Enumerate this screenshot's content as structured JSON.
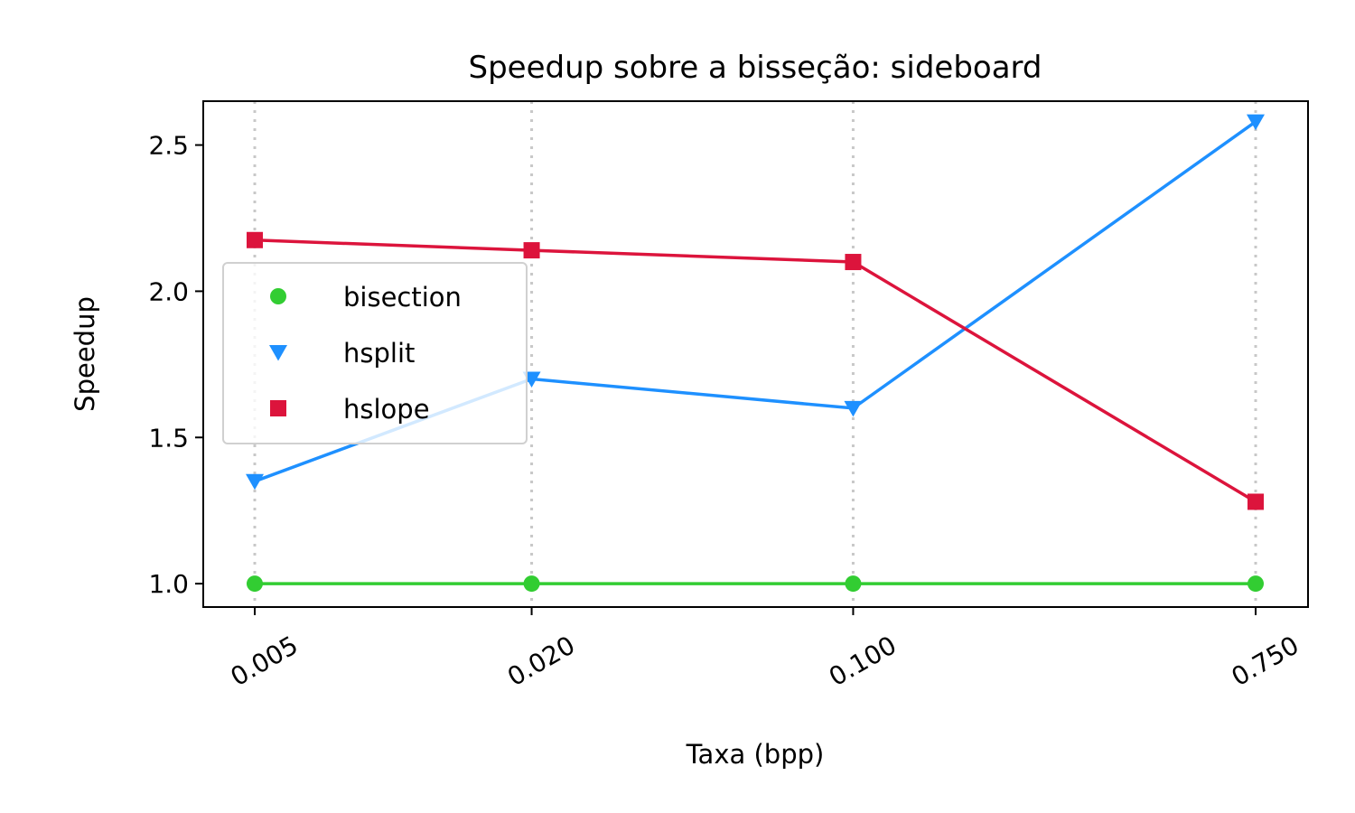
{
  "chart_data": {
    "type": "line",
    "title": "Speedup sobre a bisseção: sideboard",
    "xlabel": "Taxa (bpp)",
    "ylabel": "Speedup",
    "x_scale": "log",
    "x": [
      0.005,
      0.02,
      0.1,
      0.75
    ],
    "x_tick_labels": [
      "0.005",
      "0.020",
      "0.100",
      "0.750"
    ],
    "y_ticks": [
      1.0,
      1.5,
      2.0,
      2.5
    ],
    "y_tick_labels": [
      "1.0",
      "1.5",
      "2.0",
      "2.5"
    ],
    "ylim": [
      0.92,
      2.65
    ],
    "grid": "vertical dotted at x ticks",
    "legend_position": "center-left",
    "series": [
      {
        "name": "bisection",
        "values": [
          1.0,
          1.0,
          1.0,
          1.0
        ],
        "color": "#32cd32",
        "marker": "circle"
      },
      {
        "name": "hsplit",
        "values": [
          1.35,
          1.7,
          1.6,
          2.58
        ],
        "color": "#1e90ff",
        "marker": "triangle-down"
      },
      {
        "name": "hslope",
        "values": [
          2.175,
          2.14,
          2.1,
          1.28
        ],
        "color": "#dc143c",
        "marker": "square"
      }
    ]
  }
}
